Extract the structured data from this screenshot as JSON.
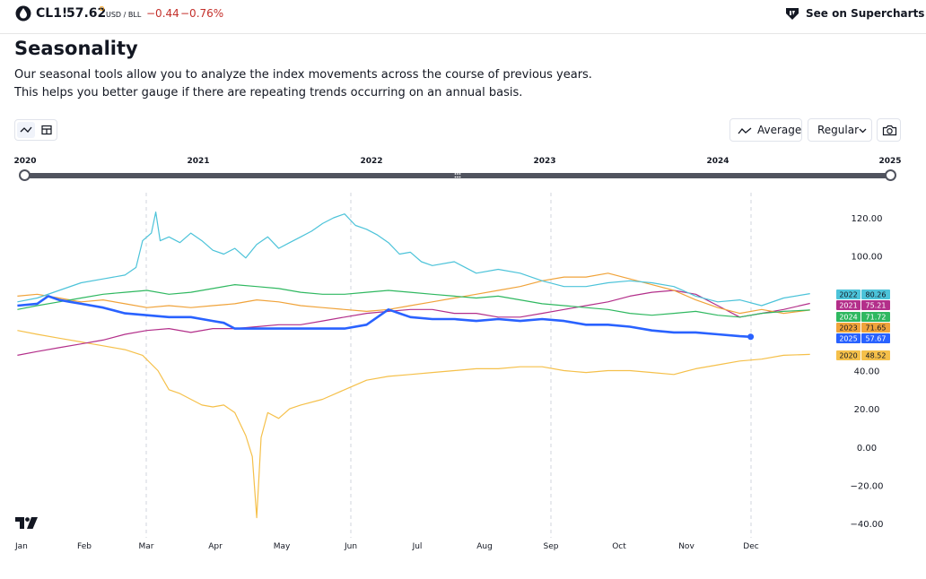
{
  "header": {
    "symbol": "CL1!",
    "price": "57.62",
    "price_flag": "D",
    "unit": "USD / BLL",
    "change": "−0.44",
    "change_pct": "−0.76%",
    "supercharts_label": "See on Supercharts"
  },
  "page": {
    "title": "Seasonality",
    "description_line1": "Our seasonal tools allow you to analyze the index movements across the course of previous years.",
    "description_line2": "This helps you better gauge if there are repeating trends occurring on an annual basis."
  },
  "toolbar": {
    "average_label": "Average",
    "mode_label": "Regular"
  },
  "range_slider": {
    "years": [
      "2020",
      "2021",
      "2022",
      "2023",
      "2024",
      "2025"
    ],
    "start": "2020",
    "end": "2025"
  },
  "colors": {
    "2020": "#f5c04a",
    "2021": "#b32f8a",
    "2022": "#4cc3d9",
    "2023": "#f0a33a",
    "2024": "#2fb860",
    "2025": "#2962ff"
  },
  "chart_data": {
    "type": "line",
    "title": "Seasonality",
    "x_labels": [
      "Jan",
      "Feb",
      "Mar",
      "Apr",
      "May",
      "Jun",
      "Jul",
      "Aug",
      "Sep",
      "Oct",
      "Nov",
      "Dec"
    ],
    "y_ticks": [
      "120.00",
      "100.00",
      "40.00",
      "20.00",
      "0.00",
      "−20.00",
      "−40.00"
    ],
    "ylim": [
      -40,
      120
    ],
    "x_unit": "day of year",
    "dashed_gridlines_at_month": [
      "Mar",
      "Jun",
      "Sep",
      "Dec"
    ],
    "legend": [
      {
        "year": "2022",
        "value": "80.26"
      },
      {
        "year": "2021",
        "value": "75.21"
      },
      {
        "year": "2024",
        "value": "71.72"
      },
      {
        "year": "2023",
        "value": "71.65"
      },
      {
        "year": "2025",
        "value": "57.67"
      },
      {
        "year": "2020",
        "value": "48.52"
      }
    ],
    "series": [
      {
        "name": "2020",
        "points": [
          [
            1,
            61
          ],
          [
            10,
            59
          ],
          [
            20,
            57
          ],
          [
            30,
            55
          ],
          [
            40,
            53
          ],
          [
            50,
            51
          ],
          [
            58,
            48
          ],
          [
            65,
            40
          ],
          [
            70,
            30
          ],
          [
            75,
            28
          ],
          [
            80,
            25
          ],
          [
            85,
            22
          ],
          [
            90,
            21
          ],
          [
            95,
            22
          ],
          [
            100,
            18
          ],
          [
            105,
            6
          ],
          [
            108,
            -5
          ],
          [
            110,
            -37
          ],
          [
            112,
            5
          ],
          [
            115,
            18
          ],
          [
            120,
            15
          ],
          [
            125,
            20
          ],
          [
            130,
            22
          ],
          [
            140,
            25
          ],
          [
            150,
            30
          ],
          [
            160,
            35
          ],
          [
            170,
            37
          ],
          [
            180,
            38
          ],
          [
            190,
            39
          ],
          [
            200,
            40
          ],
          [
            210,
            41
          ],
          [
            220,
            41
          ],
          [
            230,
            42
          ],
          [
            240,
            42
          ],
          [
            250,
            40
          ],
          [
            260,
            39
          ],
          [
            270,
            40
          ],
          [
            280,
            40
          ],
          [
            290,
            39
          ],
          [
            300,
            38
          ],
          [
            310,
            41
          ],
          [
            320,
            43
          ],
          [
            330,
            45
          ],
          [
            340,
            46
          ],
          [
            350,
            48
          ],
          [
            362,
            48.5
          ]
        ]
      },
      {
        "name": "2021",
        "points": [
          [
            1,
            48
          ],
          [
            10,
            50
          ],
          [
            20,
            52
          ],
          [
            30,
            54
          ],
          [
            40,
            56
          ],
          [
            50,
            59
          ],
          [
            60,
            61
          ],
          [
            70,
            62
          ],
          [
            80,
            60
          ],
          [
            90,
            62
          ],
          [
            100,
            62
          ],
          [
            110,
            63
          ],
          [
            120,
            64
          ],
          [
            130,
            64
          ],
          [
            140,
            66
          ],
          [
            150,
            68
          ],
          [
            160,
            70
          ],
          [
            170,
            71
          ],
          [
            180,
            72
          ],
          [
            190,
            72
          ],
          [
            200,
            70
          ],
          [
            210,
            70
          ],
          [
            220,
            68
          ],
          [
            230,
            68
          ],
          [
            240,
            70
          ],
          [
            250,
            72
          ],
          [
            260,
            74
          ],
          [
            270,
            76
          ],
          [
            280,
            79
          ],
          [
            290,
            81
          ],
          [
            300,
            82
          ],
          [
            310,
            80
          ],
          [
            320,
            74
          ],
          [
            330,
            68
          ],
          [
            340,
            70
          ],
          [
            350,
            72
          ],
          [
            362,
            75.2
          ]
        ]
      },
      {
        "name": "2022",
        "points": [
          [
            1,
            76
          ],
          [
            10,
            78
          ],
          [
            20,
            82
          ],
          [
            30,
            86
          ],
          [
            40,
            88
          ],
          [
            50,
            90
          ],
          [
            55,
            94
          ],
          [
            58,
            108
          ],
          [
            62,
            112
          ],
          [
            64,
            123
          ],
          [
            66,
            108
          ],
          [
            70,
            110
          ],
          [
            75,
            107
          ],
          [
            80,
            112
          ],
          [
            85,
            108
          ],
          [
            90,
            103
          ],
          [
            95,
            101
          ],
          [
            100,
            104
          ],
          [
            105,
            99
          ],
          [
            110,
            106
          ],
          [
            115,
            110
          ],
          [
            120,
            104
          ],
          [
            125,
            107
          ],
          [
            130,
            110
          ],
          [
            135,
            113
          ],
          [
            140,
            117
          ],
          [
            145,
            120
          ],
          [
            150,
            122
          ],
          [
            155,
            116
          ],
          [
            160,
            114
          ],
          [
            165,
            111
          ],
          [
            170,
            107
          ],
          [
            175,
            101
          ],
          [
            180,
            102
          ],
          [
            185,
            97
          ],
          [
            190,
            95
          ],
          [
            200,
            97
          ],
          [
            210,
            91
          ],
          [
            220,
            93
          ],
          [
            230,
            91
          ],
          [
            240,
            87
          ],
          [
            250,
            84
          ],
          [
            260,
            84
          ],
          [
            270,
            86
          ],
          [
            280,
            87
          ],
          [
            290,
            86
          ],
          [
            300,
            84
          ],
          [
            310,
            79
          ],
          [
            320,
            76
          ],
          [
            330,
            77
          ],
          [
            340,
            74
          ],
          [
            350,
            78
          ],
          [
            362,
            80.3
          ]
        ]
      },
      {
        "name": "2023",
        "points": [
          [
            1,
            79
          ],
          [
            10,
            80
          ],
          [
            20,
            78
          ],
          [
            30,
            76
          ],
          [
            40,
            77
          ],
          [
            50,
            75
          ],
          [
            60,
            73
          ],
          [
            70,
            74
          ],
          [
            80,
            73
          ],
          [
            90,
            74
          ],
          [
            100,
            75
          ],
          [
            110,
            77
          ],
          [
            120,
            76
          ],
          [
            130,
            74
          ],
          [
            140,
            73
          ],
          [
            150,
            72
          ],
          [
            160,
            71
          ],
          [
            170,
            72
          ],
          [
            180,
            74
          ],
          [
            190,
            76
          ],
          [
            200,
            78
          ],
          [
            210,
            80
          ],
          [
            220,
            82
          ],
          [
            230,
            84
          ],
          [
            240,
            87
          ],
          [
            250,
            89
          ],
          [
            260,
            89
          ],
          [
            270,
            91
          ],
          [
            280,
            88
          ],
          [
            290,
            85
          ],
          [
            300,
            82
          ],
          [
            310,
            77
          ],
          [
            320,
            73
          ],
          [
            330,
            70
          ],
          [
            340,
            72
          ],
          [
            350,
            70
          ],
          [
            362,
            71.7
          ]
        ]
      },
      {
        "name": "2024",
        "points": [
          [
            1,
            72
          ],
          [
            10,
            74
          ],
          [
            20,
            76
          ],
          [
            30,
            78
          ],
          [
            40,
            80
          ],
          [
            50,
            81
          ],
          [
            60,
            82
          ],
          [
            70,
            80
          ],
          [
            80,
            81
          ],
          [
            90,
            83
          ],
          [
            100,
            85
          ],
          [
            110,
            84
          ],
          [
            120,
            83
          ],
          [
            130,
            81
          ],
          [
            140,
            80
          ],
          [
            150,
            80
          ],
          [
            160,
            81
          ],
          [
            170,
            82
          ],
          [
            180,
            81
          ],
          [
            190,
            80
          ],
          [
            200,
            79
          ],
          [
            210,
            78
          ],
          [
            220,
            79
          ],
          [
            230,
            77
          ],
          [
            240,
            75
          ],
          [
            250,
            74
          ],
          [
            260,
            73
          ],
          [
            270,
            72
          ],
          [
            280,
            70
          ],
          [
            290,
            69
          ],
          [
            300,
            70
          ],
          [
            310,
            71
          ],
          [
            320,
            69
          ],
          [
            330,
            68
          ],
          [
            340,
            70
          ],
          [
            350,
            71
          ],
          [
            362,
            71.7
          ]
        ]
      },
      {
        "name": "2025",
        "points": [
          [
            1,
            74
          ],
          [
            10,
            75
          ],
          [
            15,
            79
          ],
          [
            20,
            77
          ],
          [
            25,
            76
          ],
          [
            30,
            75
          ],
          [
            40,
            73
          ],
          [
            50,
            70
          ],
          [
            60,
            69
          ],
          [
            70,
            68
          ],
          [
            80,
            68
          ],
          [
            90,
            66
          ],
          [
            95,
            65
          ],
          [
            100,
            62
          ],
          [
            110,
            62
          ],
          [
            120,
            62
          ],
          [
            130,
            62
          ],
          [
            140,
            62
          ],
          [
            150,
            62
          ],
          [
            160,
            64
          ],
          [
            165,
            68
          ],
          [
            170,
            72
          ],
          [
            175,
            70
          ],
          [
            180,
            68
          ],
          [
            190,
            67
          ],
          [
            200,
            67
          ],
          [
            210,
            66
          ],
          [
            220,
            67
          ],
          [
            230,
            66
          ],
          [
            240,
            67
          ],
          [
            250,
            66
          ],
          [
            260,
            64
          ],
          [
            270,
            64
          ],
          [
            280,
            63
          ],
          [
            290,
            61
          ],
          [
            300,
            60
          ],
          [
            310,
            60
          ],
          [
            320,
            59
          ],
          [
            330,
            58
          ],
          [
            335,
            57.7
          ]
        ]
      }
    ]
  }
}
